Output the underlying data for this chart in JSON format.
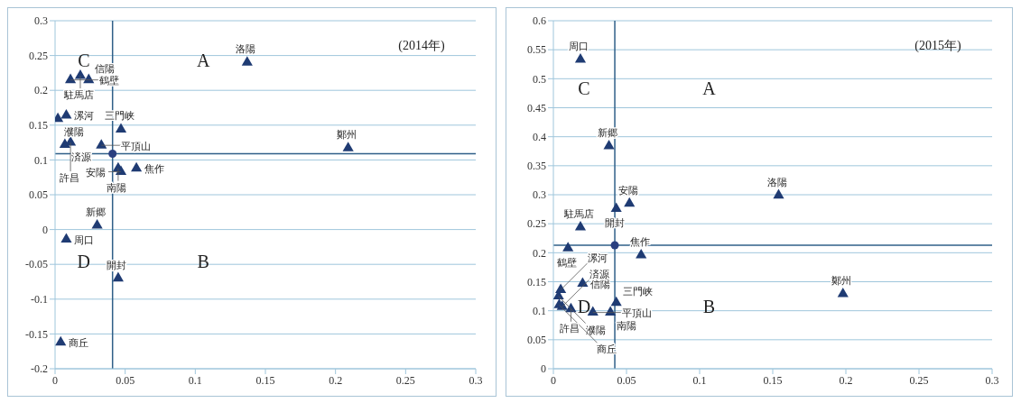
{
  "chart_data": [
    {
      "type": "scatter",
      "xlim": [
        0,
        0.3
      ],
      "xticks": [
        0,
        0.05,
        0.1,
        0.15,
        0.2,
        0.25,
        0.3
      ],
      "ylim": [
        -0.2,
        0.3
      ],
      "yticks": [
        -0.2,
        -0.15,
        -0.1,
        -0.05,
        0,
        0.05,
        0.1,
        0.15,
        0.2,
        0.25,
        0.3
      ],
      "grid": "y",
      "legend": false,
      "series": [
        {
          "color": "#1f3b73",
          "marker": "triangle",
          "x": [
            0.137,
            0.209,
            0.018,
            0.011,
            0.024,
            0.002,
            0.008,
            0.047,
            0.007,
            0.011,
            0.033,
            0.045,
            0.047,
            0.058,
            0.03,
            0.008,
            0.045,
            0.004
          ],
          "values": [
            0.24,
            0.117,
            0.221,
            0.215,
            0.215,
            0.159,
            0.164,
            0.144,
            0.122,
            0.125,
            0.121,
            0.088,
            0.083,
            0.088,
            0.006,
            -0.014,
            -0.07,
            -0.162
          ]
        },
        {
          "color": "#2b3f80",
          "marker": "circle",
          "x": [
            0.041
          ],
          "values": [
            0.109
          ]
        }
      ],
      "ref_lines": [
        {
          "axis": "x",
          "value": 0.041,
          "color": "#2f5f88"
        },
        {
          "axis": "y",
          "value": 0.109,
          "color": "#2f5f88"
        }
      ],
      "annotations": [
        "(2014年)",
        "A",
        "B",
        "C",
        "D",
        {
          "text": "洛陽",
          "x": 0.137,
          "y": 0.24
        },
        {
          "text": "鄭州",
          "x": 0.209,
          "y": 0.117
        },
        {
          "text": "駐馬店",
          "x": 0.018,
          "y": 0.221
        },
        {
          "text": "鶴壁",
          "x": 0.011,
          "y": 0.215
        },
        {
          "text": "信陽",
          "x": 0.024,
          "y": 0.215
        },
        {
          "text": "濮陽",
          "x": 0.002,
          "y": 0.159
        },
        {
          "text": "漯河",
          "x": 0.008,
          "y": 0.164
        },
        {
          "text": "三門峡",
          "x": 0.047,
          "y": 0.144
        },
        {
          "text": "済源",
          "x": 0.007,
          "y": 0.122
        },
        {
          "text": "許昌",
          "x": 0.011,
          "y": 0.125
        },
        {
          "text": "平頂山",
          "x": 0.033,
          "y": 0.121
        },
        {
          "text": "南陽",
          "x": 0.045,
          "y": 0.088
        },
        {
          "text": "安陽",
          "x": 0.047,
          "y": 0.083
        },
        {
          "text": "焦作",
          "x": 0.058,
          "y": 0.088
        },
        {
          "text": "新郷",
          "x": 0.03,
          "y": 0.006
        },
        {
          "text": "周口",
          "x": 0.008,
          "y": -0.014
        },
        {
          "text": "開封",
          "x": 0.045,
          "y": -0.07
        },
        {
          "text": "商丘",
          "x": 0.004,
          "y": -0.162
        }
      ]
    },
    {
      "type": "scatter",
      "xlim": [
        0,
        0.3
      ],
      "xticks": [
        0,
        0.05,
        0.1,
        0.15,
        0.2,
        0.25,
        0.3
      ],
      "ylim": [
        0,
        0.6
      ],
      "yticks": [
        0,
        0.05,
        0.1,
        0.15,
        0.2,
        0.25,
        0.3,
        0.35,
        0.4,
        0.45,
        0.5,
        0.55,
        0.6
      ],
      "grid": "y",
      "legend": false,
      "series": [
        {
          "color": "#1f3b73",
          "marker": "triangle",
          "x": [
            0.0185,
            0.038,
            0.052,
            0.043,
            0.0185,
            0.01,
            0.06,
            0.154,
            0.198,
            0.02,
            0.005,
            0.0035,
            0.004,
            0.006,
            0.012,
            0.027,
            0.043,
            0.039
          ],
          "values": [
            0.533,
            0.384,
            0.285,
            0.276,
            0.244,
            0.208,
            0.196,
            0.299,
            0.129,
            0.147,
            0.136,
            0.125,
            0.11,
            0.107,
            0.103,
            0.097,
            0.114,
            0.097
          ]
        },
        {
          "color": "#2b3f80",
          "marker": "circle",
          "x": [
            0.042
          ],
          "values": [
            0.213
          ]
        }
      ],
      "ref_lines": [
        {
          "axis": "x",
          "value": 0.042,
          "color": "#2f5f88"
        },
        {
          "axis": "y",
          "value": 0.213,
          "color": "#2f5f88"
        }
      ],
      "annotations": [
        "(2015年)",
        "A",
        "B",
        "C",
        "D",
        {
          "text": "周口",
          "x": 0.0185,
          "y": 0.533
        },
        {
          "text": "新郷",
          "x": 0.038,
          "y": 0.384
        },
        {
          "text": "安陽",
          "x": 0.052,
          "y": 0.285
        },
        {
          "text": "開封",
          "x": 0.043,
          "y": 0.276
        },
        {
          "text": "駐馬店",
          "x": 0.0185,
          "y": 0.244
        },
        {
          "text": "鶴壁",
          "x": 0.01,
          "y": 0.208
        },
        {
          "text": "焦作",
          "x": 0.06,
          "y": 0.196
        },
        {
          "text": "洛陽",
          "x": 0.154,
          "y": 0.299
        },
        {
          "text": "鄭州",
          "x": 0.198,
          "y": 0.129
        },
        {
          "text": "信陽",
          "x": 0.02,
          "y": 0.147
        },
        {
          "text": "漯河",
          "x": 0.005,
          "y": 0.136
        },
        {
          "text": "濮陽",
          "x": 0.0035,
          "y": 0.125
        },
        {
          "text": "商丘",
          "x": 0.004,
          "y": 0.11
        },
        {
          "text": "済源",
          "x": 0.006,
          "y": 0.107
        },
        {
          "text": "許昌",
          "x": 0.012,
          "y": 0.103
        },
        {
          "text": "平頂山",
          "x": 0.027,
          "y": 0.097
        },
        {
          "text": "三門峡",
          "x": 0.043,
          "y": 0.114
        },
        {
          "text": "南陽",
          "x": 0.039,
          "y": 0.097
        }
      ]
    }
  ]
}
